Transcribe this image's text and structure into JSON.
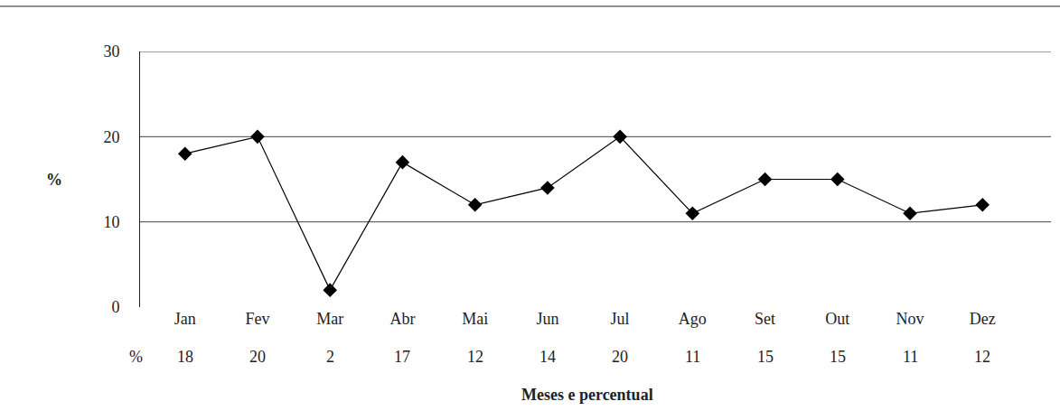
{
  "chart_data": {
    "type": "line",
    "categories": [
      "Jan",
      "Fev",
      "Mar",
      "Abr",
      "Mai",
      "Jun",
      "Jul",
      "Ago",
      "Set",
      "Out",
      "Nov",
      "Dez"
    ],
    "values": [
      18,
      20,
      2,
      17,
      12,
      14,
      20,
      11,
      15,
      15,
      11,
      12
    ],
    "y_label": "%",
    "x_label": "Meses e percentual",
    "annotations": [
      "%"
    ],
    "ylim": [
      0,
      30
    ],
    "yticks": [
      0,
      10,
      20,
      30
    ],
    "grid": true,
    "data_labels": true,
    "color": "#000000",
    "marker": "diamond",
    "line_style": "solid"
  }
}
